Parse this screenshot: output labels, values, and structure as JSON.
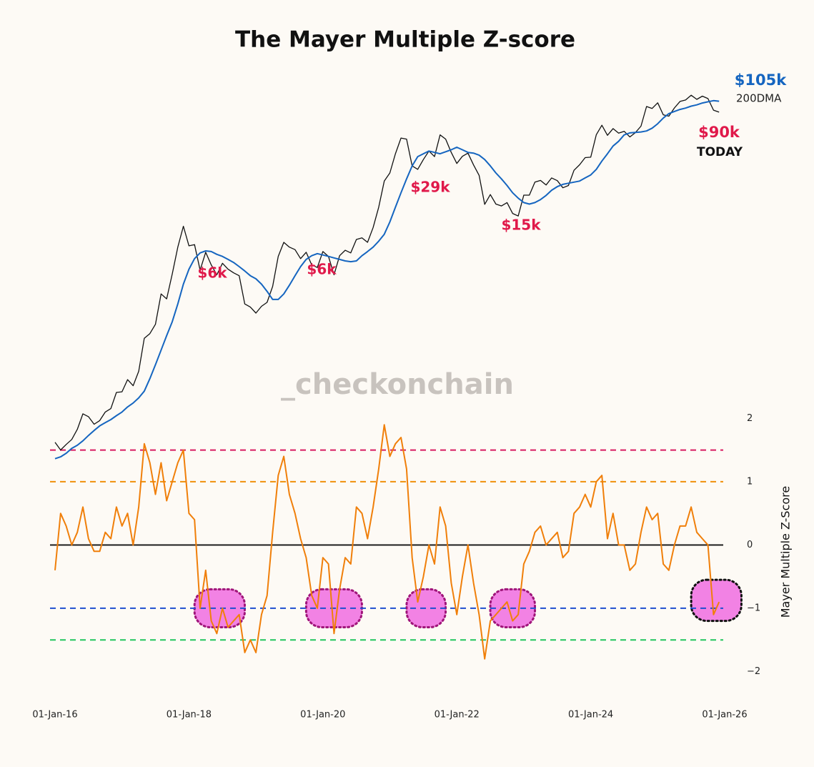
{
  "chart_data": [
    {
      "type": "line",
      "title": "The Mayer Multiple Z-score",
      "log_scale": true,
      "ylim": [
        400,
        120000
      ],
      "series": [
        {
          "color": "#111111",
          "values": [
            430,
            380,
            415,
            450,
            530,
            680,
            650,
            575,
            610,
            700,
            740,
            960,
            970,
            1180,
            1070,
            1350,
            2300,
            2480,
            2880,
            4700,
            4340,
            6470,
            10000,
            14000,
            10200,
            10400,
            6900,
            9200,
            7500,
            6400,
            7700,
            7000,
            6600,
            6300,
            4000,
            3800,
            3450,
            3850,
            4100,
            5300,
            8600,
            10800,
            10000,
            9600,
            8300,
            9200,
            7500,
            7200,
            9300,
            8600,
            6400,
            8700,
            9500,
            9100,
            11300,
            11600,
            10800,
            13700,
            19000,
            29000,
            33000,
            45000,
            58000,
            57000,
            37000,
            35000,
            41000,
            47000,
            43000,
            61000,
            57000,
            46000,
            38500,
            43200,
            45500,
            37600,
            31800,
            19900,
            23300,
            20000,
            19400,
            20500,
            17200,
            16500,
            23100,
            23100,
            28500,
            29300,
            27200,
            30500,
            29200,
            26000,
            27000,
            34500,
            37700,
            42300,
            42600,
            61200,
            71300,
            60600,
            67500,
            62700,
            64600,
            59000,
            63300,
            70200,
            96400,
            93400,
            102400,
            84300,
            82500,
            94200,
            104600,
            107100,
            115700,
            108200,
            114000,
            109500,
            90900,
            88000
          ]
        },
        {
          "name": "200DMA",
          "color": "#1565c0",
          "values": [
            330,
            340,
            360,
            390,
            410,
            440,
            480,
            520,
            560,
            590,
            620,
            660,
            700,
            760,
            810,
            880,
            980,
            1200,
            1500,
            1900,
            2400,
            3000,
            4000,
            5500,
            7000,
            8300,
            9100,
            9400,
            9300,
            8900,
            8600,
            8200,
            7800,
            7300,
            6800,
            6300,
            6000,
            5500,
            4900,
            4300,
            4300,
            4700,
            5400,
            6300,
            7300,
            8200,
            8700,
            9000,
            8800,
            8600,
            8400,
            8200,
            8000,
            7900,
            8000,
            8700,
            9300,
            10000,
            11000,
            12300,
            15000,
            19000,
            24000,
            30000,
            37000,
            43000,
            45000,
            47000,
            46000,
            45000,
            46500,
            48000,
            50000,
            48000,
            46000,
            45500,
            44000,
            41000,
            37000,
            33000,
            30000,
            27000,
            24000,
            22000,
            20500,
            20000,
            20500,
            21500,
            23000,
            25000,
            26500,
            27500,
            28000,
            28500,
            29000,
            30500,
            32000,
            35000,
            40000,
            45000,
            51000,
            55000,
            61000,
            63000,
            63500,
            64000,
            65000,
            68000,
            73000,
            80000,
            86000,
            89000,
            92000,
            94000,
            97000,
            99000,
            102000,
            104000,
            106000,
            105000
          ]
        }
      ],
      "annotations": [
        {
          "text": "$6k",
          "color": "#e0194a"
        },
        {
          "text": "$6k",
          "color": "#e0194a"
        },
        {
          "text": "$29k",
          "color": "#e0194a"
        },
        {
          "text": "$15k",
          "color": "#e0194a"
        },
        {
          "text": "$105k",
          "color": "#1565c0"
        },
        {
          "text": "$90k",
          "color": "#e0194a"
        },
        {
          "text": "TODAY",
          "color": "#111111"
        },
        {
          "text": "_checkonchain",
          "color": "#c8c3be"
        }
      ]
    },
    {
      "type": "line",
      "ylabel": "Mayer Multiple Z-Score",
      "ylim": [
        -2.3,
        2.4
      ],
      "yticks": [
        2,
        1,
        0,
        {
          "value": -1,
          "label": "−1"
        },
        {
          "value": -2,
          "label": "−2"
        }
      ],
      "x": [
        "01-Jan-16",
        "01-Feb-16",
        "01-Mar-16",
        "01-Apr-16",
        "01-May-16",
        "01-Jun-16",
        "01-Jul-16",
        "01-Aug-16",
        "01-Sep-16",
        "01-Oct-16",
        "01-Nov-16",
        "01-Dec-16",
        "01-Jan-17",
        "01-Feb-17",
        "01-Mar-17",
        "01-Apr-17",
        "01-May-17",
        "01-Jun-17",
        "01-Jul-17",
        "01-Aug-17",
        "01-Sep-17",
        "01-Oct-17",
        "01-Nov-17",
        "01-Dec-17",
        "01-Jan-18",
        "01-Feb-18",
        "01-Mar-18",
        "01-Apr-18",
        "01-May-18",
        "01-Jun-18",
        "01-Jul-18",
        "01-Aug-18",
        "01-Sep-18",
        "01-Oct-18",
        "01-Nov-18",
        "01-Dec-18",
        "01-Jan-19",
        "01-Feb-19",
        "01-Mar-19",
        "01-Apr-19",
        "01-May-19",
        "01-Jun-19",
        "01-Jul-19",
        "01-Aug-19",
        "01-Sep-19",
        "01-Oct-19",
        "01-Nov-19",
        "01-Dec-19",
        "01-Jan-20",
        "01-Feb-20",
        "01-Mar-20",
        "01-Apr-20",
        "01-May-20",
        "01-Jun-20",
        "01-Jul-20",
        "01-Aug-20",
        "01-Sep-20",
        "01-Oct-20",
        "01-Nov-20",
        "01-Dec-20",
        "01-Jan-21",
        "01-Feb-21",
        "01-Mar-21",
        "01-Apr-21",
        "01-May-21",
        "01-Jun-21",
        "01-Jul-21",
        "01-Aug-21",
        "01-Sep-21",
        "01-Oct-21",
        "01-Nov-21",
        "01-Dec-21",
        "01-Jan-22",
        "01-Feb-22",
        "01-Mar-22",
        "01-Apr-22",
        "01-May-22",
        "01-Jun-22",
        "01-Jul-22",
        "01-Aug-22",
        "01-Sep-22",
        "01-Oct-22",
        "01-Nov-22",
        "01-Dec-22",
        "01-Jan-23",
        "01-Feb-23",
        "01-Mar-23",
        "01-Apr-23",
        "01-May-23",
        "01-Jun-23",
        "01-Jul-23",
        "01-Aug-23",
        "01-Sep-23",
        "01-Oct-23",
        "01-Nov-23",
        "01-Dec-23",
        "01-Jan-24",
        "01-Feb-24",
        "01-Mar-24",
        "01-Apr-24",
        "01-May-24",
        "01-Jun-24",
        "01-Jul-24",
        "01-Aug-24",
        "01-Sep-24",
        "01-Oct-24",
        "01-Nov-24",
        "01-Dec-24",
        "01-Jan-25",
        "01-Feb-25",
        "01-Mar-25",
        "01-Apr-25",
        "01-May-25",
        "01-Jun-25",
        "01-Jul-25",
        "01-Aug-25",
        "01-Sep-25",
        "01-Oct-25",
        "01-Nov-25",
        "01-Dec-25"
      ],
      "xticks": [
        "01-Jan-16",
        "01-Jan-18",
        "01-Jan-20",
        "01-Jan-22",
        "01-Jan-24",
        "01-Jan-26"
      ],
      "series": [
        {
          "color": "#f07f0a",
          "values": [
            -0.4,
            0.5,
            0.3,
            0,
            0.2,
            0.6,
            0.1,
            -0.1,
            -0.1,
            0.2,
            0.1,
            0.6,
            0.3,
            0.5,
            0,
            0.6,
            1.6,
            1.3,
            0.8,
            1.3,
            0.7,
            1.0,
            1.3,
            1.5,
            0.5,
            0.4,
            -1.0,
            -0.4,
            -1.2,
            -1.4,
            -1.0,
            -1.3,
            -1.2,
            -1.1,
            -1.7,
            -1.5,
            -1.7,
            -1.1,
            -0.8,
            0.2,
            1.1,
            1.4,
            0.8,
            0.5,
            0.1,
            -0.2,
            -0.8,
            -1.0,
            -0.2,
            -0.3,
            -1.4,
            -0.7,
            -0.2,
            -0.3,
            0.6,
            0.5,
            0.1,
            0.6,
            1.2,
            1.9,
            1.4,
            1.6,
            1.7,
            1.2,
            -0.2,
            -0.9,
            -0.5,
            0,
            -0.3,
            0.6,
            0.3,
            -0.6,
            -1.1,
            -0.5,
            0,
            -0.6,
            -1.1,
            -1.8,
            -1.2,
            -1.1,
            -1.0,
            -0.9,
            -1.2,
            -1.1,
            -0.3,
            -0.1,
            0.2,
            0.3,
            0,
            0.1,
            0.2,
            -0.2,
            -0.1,
            0.5,
            0.6,
            0.8,
            0.6,
            1.0,
            1.1,
            0.1,
            0.5,
            0,
            0,
            -0.4,
            -0.3,
            0.2,
            0.6,
            0.4,
            0.5,
            -0.3,
            -0.4,
            0,
            0.3,
            0.3,
            0.6,
            0.2,
            0.1,
            0,
            -1.1,
            -0.9
          ]
        }
      ],
      "reference_lines": [
        {
          "value": 1.5,
          "color": "#d81b60",
          "dashed": true
        },
        {
          "value": 1,
          "color": "#f0900a",
          "dashed": true
        },
        {
          "value": 0,
          "color": "#111111",
          "dashed": false
        },
        {
          "value": -1,
          "color": "#1f4fd0",
          "dashed": true
        },
        {
          "value": -1.5,
          "color": "#22c55e",
          "dashed": true
        }
      ],
      "highlights": [
        {
          "x": [
            "01-Feb-18",
            "01-Nov-18"
          ],
          "ylim": [
            -1.3,
            -0.7
          ],
          "color": "#f06ce0",
          "border": "#a0157a"
        },
        {
          "x": [
            "01-Oct-19",
            "01-Aug-20"
          ],
          "ylim": [
            -1.3,
            -0.7
          ],
          "color": "#f06ce0",
          "border": "#a0157a"
        },
        {
          "x": [
            "01-Apr-21",
            "01-Nov-21"
          ],
          "ylim": [
            -1.3,
            -0.7
          ],
          "color": "#f06ce0",
          "border": "#a0157a"
        },
        {
          "x": [
            "01-Jul-22",
            "01-Mar-23"
          ],
          "ylim": [
            -1.3,
            -0.7
          ],
          "color": "#f06ce0",
          "border": "#a0157a"
        },
        {
          "x": [
            "01-Jul-25",
            "01-Apr-26"
          ],
          "ylim": [
            -1.2,
            -0.55
          ],
          "color": "#f06ce0",
          "border": "#111111"
        }
      ]
    }
  ]
}
